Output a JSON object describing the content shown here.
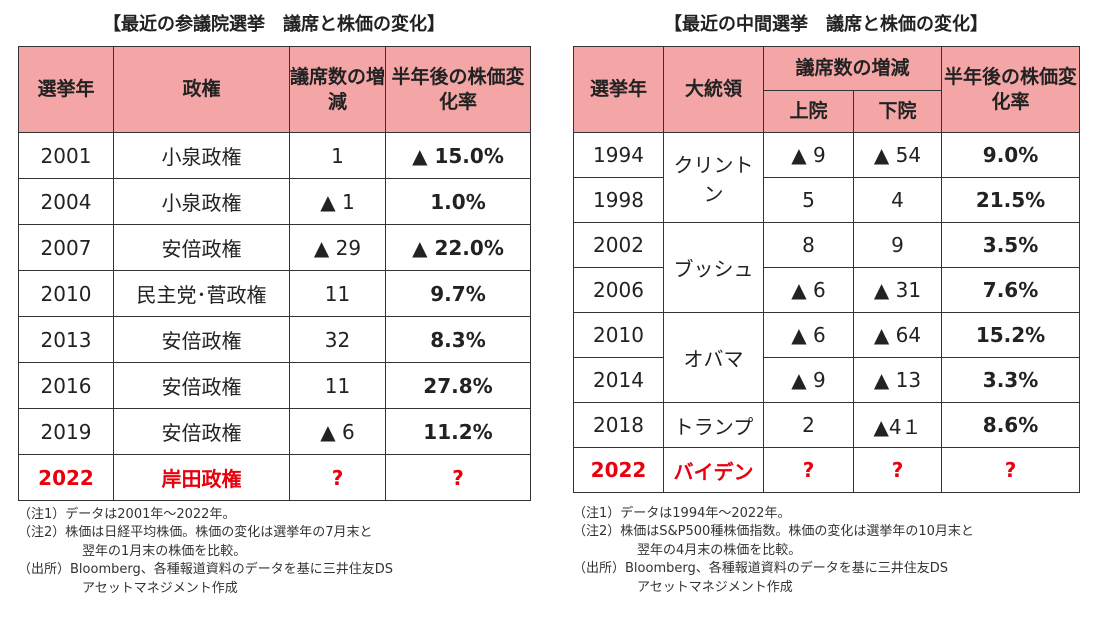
{
  "left": {
    "title": "【最近の参議院選挙　議席と株価の変化】",
    "headers": {
      "year": "選挙年",
      "gov": "政権",
      "seats": "議席数の増減",
      "stock": "半年後の株価変化率"
    },
    "rows": [
      {
        "year": "2001",
        "gov": "小泉政権",
        "seats": "1",
        "stock": "▲ 15.0%"
      },
      {
        "year": "2004",
        "gov": "小泉政権",
        "seats": "▲ 1",
        "stock": "1.0%"
      },
      {
        "year": "2007",
        "gov": "安倍政権",
        "seats": "▲ 29",
        "stock": "▲ 22.0%"
      },
      {
        "year": "2010",
        "gov": "民主党･菅政権",
        "seats": "11",
        "stock": "9.7%"
      },
      {
        "year": "2013",
        "gov": "安倍政権",
        "seats": "32",
        "stock": "8.3%"
      },
      {
        "year": "2016",
        "gov": "安倍政権",
        "seats": "11",
        "stock": "27.8%"
      },
      {
        "year": "2019",
        "gov": "安倍政権",
        "seats": "▲ 6",
        "stock": "11.2%"
      },
      {
        "year": "2022",
        "gov": "岸田政権",
        "seats": "?",
        "stock": "?"
      }
    ],
    "notes": [
      "（注1）データは2001年～2022年。",
      "（注2）株価は日経平均株価。株価の変化は選挙年の7月末と",
      "翌年の1月末の株価を比較。",
      "（出所）Bloomberg、各種報道資料のデータを基に三井住友DS",
      "アセットマネジメント作成"
    ]
  },
  "right": {
    "title": "【最近の中間選挙　議席と株価の変化】",
    "headers": {
      "year": "選挙年",
      "president": "大統領",
      "seats": "議席数の増減",
      "senate": "上院",
      "house": "下院",
      "stock": "半年後の株価変化率"
    },
    "rows": [
      {
        "year": "1994",
        "senate": "▲ 9",
        "house": "▲ 54",
        "stock": "9.0%"
      },
      {
        "year": "1998",
        "senate": "5",
        "house": "4",
        "stock": "21.5%"
      },
      {
        "year": "2002",
        "senate": "8",
        "house": "9",
        "stock": "3.5%"
      },
      {
        "year": "2006",
        "senate": "▲ 6",
        "house": "▲ 31",
        "stock": "7.6%"
      },
      {
        "year": "2010",
        "senate": "▲ 6",
        "house": "▲ 64",
        "stock": "15.2%"
      },
      {
        "year": "2014",
        "senate": "▲ 9",
        "house": "▲ 13",
        "stock": "3.3%"
      },
      {
        "year": "2018",
        "senate": "2",
        "house": "▲4１",
        "stock": "8.6%"
      },
      {
        "year": "2022",
        "senate": "?",
        "house": "?",
        "stock": "?"
      }
    ],
    "presidents": {
      "clinton": "クリントン",
      "bush": "ブッシュ",
      "obama": "オバマ",
      "trump": "トランプ",
      "biden": "バイデン"
    },
    "notes": [
      "（注1）データは1994年～2022年。",
      "（注2）株価はS&P500種株価指数。株価の変化は選挙年の10月末と",
      "翌年の4月末の株価を比較。",
      "（出所）Bloomberg、各種報道資料のデータを基に三井住友DS",
      "アセットマネジメント作成"
    ]
  }
}
